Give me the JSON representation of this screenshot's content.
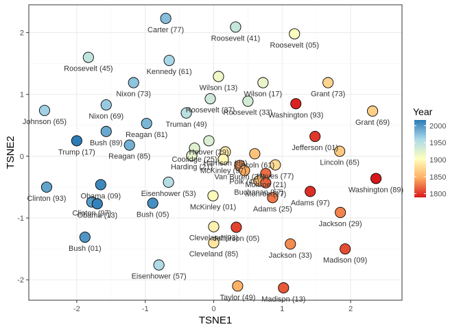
{
  "chart_data": {
    "type": "scatter",
    "xlabel": "TSNE1",
    "ylabel": "TSNE2",
    "xlim": [
      -2.7,
      2.75
    ],
    "ylim": [
      -2.33,
      2.45
    ],
    "x_ticks": [
      -2,
      -1,
      0,
      1,
      2
    ],
    "y_ticks": [
      -2,
      -1,
      0,
      1,
      2
    ],
    "grid": true,
    "legend": {
      "title": "Year",
      "placement": "right",
      "ticks": [
        1800,
        1850,
        1900,
        1950,
        2000
      ],
      "range": [
        1789,
        2017
      ],
      "colors": [
        "#d7191c",
        "#fdae61",
        "#ffffbf",
        "#abd9e9",
        "#2c7bb6"
      ]
    },
    "points": [
      {
        "label": "Carter (77)",
        "year": 1977,
        "x": -0.7,
        "y": 2.23
      },
      {
        "label": "Roosevelt (41)",
        "year": 1941,
        "x": 0.32,
        "y": 2.09
      },
      {
        "label": "Roosevelt (05)",
        "year": 1905,
        "x": 1.18,
        "y": 1.98
      },
      {
        "label": "Roosevelt (45)",
        "year": 1945,
        "x": -1.83,
        "y": 1.6
      },
      {
        "label": "Kennedy (61)",
        "year": 1961,
        "x": -0.65,
        "y": 1.55
      },
      {
        "label": "Wilson (13)",
        "year": 1913,
        "x": 0.07,
        "y": 1.29
      },
      {
        "label": "Wilson (17)",
        "year": 1917,
        "x": 0.72,
        "y": 1.19
      },
      {
        "label": "Grant (73)",
        "year": 1873,
        "x": 1.67,
        "y": 1.19
      },
      {
        "label": "Nixon (73)",
        "year": 1973,
        "x": -1.17,
        "y": 1.19
      },
      {
        "label": "Roosevelt (37)",
        "year": 1937,
        "x": -0.05,
        "y": 0.93
      },
      {
        "label": "Roosevelt (33)",
        "year": 1933,
        "x": 0.5,
        "y": 0.89
      },
      {
        "label": "Washington (93)",
        "year": 1793,
        "x": 1.2,
        "y": 0.85
      },
      {
        "label": "Nixon (69)",
        "year": 1969,
        "x": -1.57,
        "y": 0.83
      },
      {
        "label": "Truman (49)",
        "year": 1949,
        "x": -0.4,
        "y": 0.7
      },
      {
        "label": "Grant (69)",
        "year": 1869,
        "x": 2.32,
        "y": 0.73
      },
      {
        "label": "Johnson (65)",
        "year": 1965,
        "x": -2.47,
        "y": 0.74
      },
      {
        "label": "Reagan (81)",
        "year": 1981,
        "x": -0.98,
        "y": 0.53
      },
      {
        "label": "Bush (89)",
        "year": 1989,
        "x": -1.57,
        "y": 0.4
      },
      {
        "label": "Jefferson (01)",
        "year": 1801,
        "x": 1.48,
        "y": 0.32
      },
      {
        "label": "Trump (17)",
        "year": 2017,
        "x": -2.0,
        "y": 0.25
      },
      {
        "label": "Reagan (85)",
        "year": 1985,
        "x": -1.23,
        "y": 0.18
      },
      {
        "label": "Hoover (29)",
        "year": 1929,
        "x": -0.07,
        "y": 0.25
      },
      {
        "label": "Lincoln (65)",
        "year": 1865,
        "x": 1.84,
        "y": 0.08
      },
      {
        "label": "Coolidge (25)",
        "year": 1925,
        "x": -0.28,
        "y": 0.13
      },
      {
        "label": "Harding (21)",
        "year": 1921,
        "x": -0.32,
        "y": 0.01
      },
      {
        "label": "Harrison (89)",
        "year": 1889,
        "x": 0.17,
        "y": 0.07
      },
      {
        "label": "Lincoln (61)",
        "year": 1861,
        "x": 0.6,
        "y": 0.04
      },
      {
        "label": "McKinley (97)",
        "year": 1897,
        "x": 0.14,
        "y": -0.05
      },
      {
        "label": "Van Buren (37)",
        "year": 1837,
        "x": 0.38,
        "y": -0.15
      },
      {
        "label": "Polk (45)",
        "year": 1845,
        "x": 0.45,
        "y": -0.23
      },
      {
        "label": "Hayes (77)",
        "year": 1877,
        "x": 0.9,
        "y": -0.14
      },
      {
        "label": "Monroe (21)",
        "year": 1821,
        "x": 0.76,
        "y": -0.28
      },
      {
        "label": "Buchanan (57)",
        "year": 1857,
        "x": 0.66,
        "y": -0.4
      },
      {
        "label": "Washington (89)",
        "year": 1789,
        "x": 2.37,
        "y": -0.36
      },
      {
        "label": "Monroe (17)",
        "year": 1817,
        "x": 0.76,
        "y": -0.43
      },
      {
        "label": "Clinton (93)",
        "year": 1993,
        "x": -2.44,
        "y": -0.5
      },
      {
        "label": "Obama (09)",
        "year": 2009,
        "x": -1.65,
        "y": -0.46
      },
      {
        "label": "Eisenhower (53)",
        "year": 1953,
        "x": -0.66,
        "y": -0.42
      },
      {
        "label": "Adams (97)",
        "year": 1797,
        "x": 1.41,
        "y": -0.57
      },
      {
        "label": "McKinley (01)",
        "year": 1901,
        "x": -0.01,
        "y": -0.64
      },
      {
        "label": "Adams (25)",
        "year": 1825,
        "x": 0.86,
        "y": -0.67
      },
      {
        "label": "Clinton (97)",
        "year": 1997,
        "x": -1.78,
        "y": -0.74
      },
      {
        "label": "Obama (13)",
        "year": 2013,
        "x": -1.7,
        "y": -0.77
      },
      {
        "label": "Bush (05)",
        "year": 2005,
        "x": -0.89,
        "y": -0.76
      },
      {
        "label": "Jackson (29)",
        "year": 1829,
        "x": 1.85,
        "y": -0.91
      },
      {
        "label": "Cleveland (93)",
        "year": 1893,
        "x": 0.0,
        "y": -1.14
      },
      {
        "label": "Jefferson (05)",
        "year": 1805,
        "x": 0.33,
        "y": -1.15
      },
      {
        "label": "Bush (01)",
        "year": 2001,
        "x": -1.88,
        "y": -1.31
      },
      {
        "label": "Cleveland (85)",
        "year": 1885,
        "x": 0.0,
        "y": -1.4
      },
      {
        "label": "Jackson (33)",
        "year": 1833,
        "x": 1.12,
        "y": -1.42
      },
      {
        "label": "Madison (09)",
        "year": 1809,
        "x": 1.92,
        "y": -1.5
      },
      {
        "label": "Eisenhower (57)",
        "year": 1957,
        "x": -0.8,
        "y": -1.76
      },
      {
        "label": "Taylor (49)",
        "year": 1849,
        "x": 0.35,
        "y": -2.1
      },
      {
        "label": "Madison (13)",
        "year": 1813,
        "x": 1.02,
        "y": -2.13
      }
    ]
  }
}
